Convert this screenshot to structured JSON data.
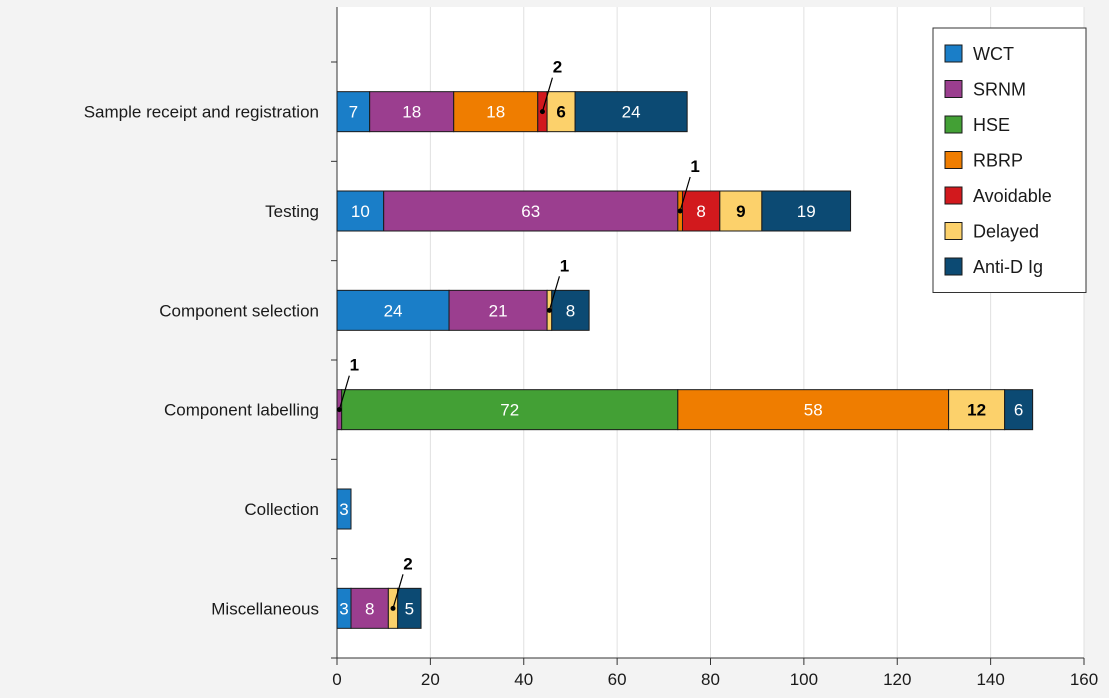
{
  "chart_data": {
    "type": "bar",
    "orientation": "horizontal",
    "stacked": true,
    "categories": [
      "Sample receipt and registration",
      "Testing",
      "Component selection",
      "Component labelling",
      "Collection",
      "Miscellaneous"
    ],
    "series": [
      {
        "name": "WCT",
        "color": "#1a7ec8",
        "values": [
          7,
          10,
          24,
          0,
          3,
          3
        ]
      },
      {
        "name": "SRNM",
        "color": "#9b3e8f",
        "values": [
          18,
          63,
          21,
          1,
          0,
          8
        ]
      },
      {
        "name": "HSE",
        "color": "#43a035",
        "values": [
          0,
          0,
          0,
          72,
          0,
          0
        ]
      },
      {
        "name": "RBRP",
        "color": "#ef7d00",
        "values": [
          18,
          1,
          0,
          58,
          0,
          0
        ]
      },
      {
        "name": "Avoidable",
        "color": "#d2191d",
        "values": [
          2,
          8,
          0,
          0,
          0,
          0
        ]
      },
      {
        "name": "Delayed",
        "color": "#fcd16b",
        "values": [
          6,
          9,
          1,
          12,
          0,
          2
        ]
      },
      {
        "name": "Anti-D Ig",
        "color": "#0c4a73",
        "values": [
          24,
          19,
          8,
          6,
          0,
          5
        ]
      }
    ],
    "callouts": [
      {
        "category": 0,
        "series": 4,
        "text": "2"
      },
      {
        "category": 1,
        "series": 3,
        "text": "1"
      },
      {
        "category": 2,
        "series": 5,
        "text": "1"
      },
      {
        "category": 3,
        "series": 1,
        "text": "1"
      },
      {
        "category": 5,
        "series": 5,
        "text": "2"
      }
    ],
    "xlim": [
      0,
      160
    ],
    "xticks": [
      "0",
      "20",
      "40",
      "60",
      "80",
      "100",
      "120",
      "140",
      "160"
    ],
    "grid": "vertical",
    "legend_position": "top-right",
    "title": "",
    "xlabel": "",
    "ylabel": ""
  }
}
